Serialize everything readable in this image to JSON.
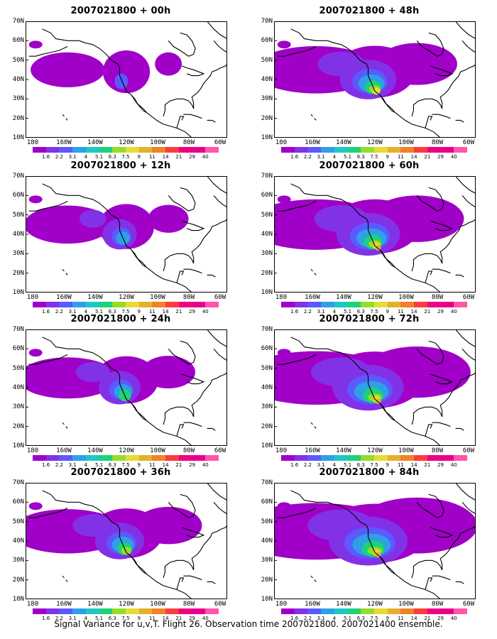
{
  "panels": [
    {
      "title": "2007021800 + 00h",
      "level": 0
    },
    {
      "title": "2007021800 + 12h",
      "level": 1
    },
    {
      "title": "2007021800 + 24h",
      "level": 2
    },
    {
      "title": "2007021800 + 36h",
      "level": 3
    },
    {
      "title": "2007021800 + 48h",
      "level": 4
    },
    {
      "title": "2007021800 + 60h",
      "level": 5
    },
    {
      "title": "2007021800 + 72h",
      "level": 6
    },
    {
      "title": "2007021800 + 84h",
      "level": 7
    }
  ],
  "lat_labels": [
    "70N",
    "60N",
    "50N",
    "40N",
    "30N",
    "20N",
    "10N"
  ],
  "lon_labels": [
    "180",
    "160W",
    "140W",
    "120W",
    "100W",
    "80W",
    "60W"
  ],
  "colorbar": {
    "ticks": [
      "1.6",
      "2.2",
      "3.1",
      "4",
      "5.1",
      "6.3",
      "7.5",
      "9",
      "11",
      "14",
      "21",
      "29",
      "40"
    ],
    "colors": [
      "#a000c8",
      "#8232e6",
      "#5a5aff",
      "#2ea0e6",
      "#1ec8c8",
      "#1ed278",
      "#96dc28",
      "#e6dc32",
      "#e6af2d",
      "#f08228",
      "#fa3c3c",
      "#f00082",
      "#e6008c",
      "#ff55aa"
    ]
  },
  "caption": "Signal Variance for u,v,T. Flight 26. Observation time 2007021800. 2007021400 ensemble."
}
